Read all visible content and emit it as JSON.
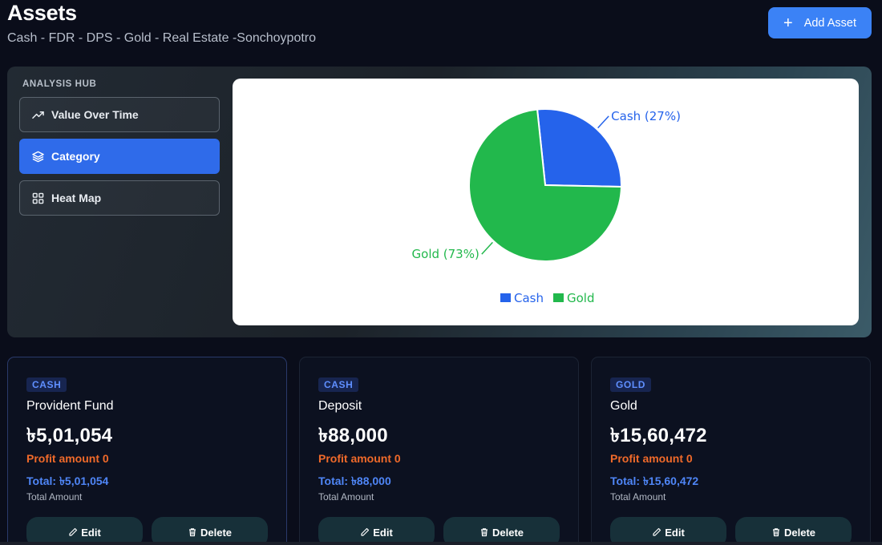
{
  "header": {
    "title": "Assets",
    "subtitle": "Cash - FDR - DPS - Gold - Real Estate -Sonchoypotro",
    "add_button_label": "Add Asset",
    "add_button_icon": "plus-icon"
  },
  "analysis_hub": {
    "title": "ANALYSIS HUB",
    "buttons": [
      {
        "label": "Value Over Time",
        "icon": "trending-up-icon",
        "active": false
      },
      {
        "label": "Category",
        "icon": "layers-icon",
        "active": true
      },
      {
        "label": "Heat Map",
        "icon": "grid-icon",
        "active": false
      }
    ]
  },
  "chart_data": {
    "type": "pie",
    "slices": [
      {
        "name": "Cash",
        "value": 27,
        "label": "Cash (27%)",
        "color": "#2563eb"
      },
      {
        "name": "Gold",
        "value": 73,
        "label": "Gold (73%)",
        "color": "#22b84c"
      }
    ],
    "legend": [
      "Cash",
      "Gold"
    ],
    "legend_position": "bottom"
  },
  "assets": [
    {
      "category": "CASH",
      "name": "Provident Fund",
      "value": "৳5,01,054",
      "profit": "Profit amount 0",
      "total": "Total: ৳5,01,054",
      "total_caption": "Total Amount",
      "edit_label": "Edit",
      "delete_label": "Delete"
    },
    {
      "category": "CASH",
      "name": "Deposit",
      "value": "৳88,000",
      "profit": "Profit amount 0",
      "total": "Total: ৳88,000",
      "total_caption": "Total Amount",
      "edit_label": "Edit",
      "delete_label": "Delete"
    },
    {
      "category": "GOLD",
      "name": "Gold",
      "value": "৳15,60,472",
      "profit": "Profit amount 0",
      "total": "Total: ৳15,60,472",
      "total_caption": "Total Amount",
      "edit_label": "Edit",
      "delete_label": "Delete"
    }
  ],
  "colors": {
    "background": "#0a0d1a",
    "accent": "#3b82f6",
    "profit": "#f06a2a",
    "total": "#4f86f7",
    "badge_text": "#5f8fff"
  }
}
